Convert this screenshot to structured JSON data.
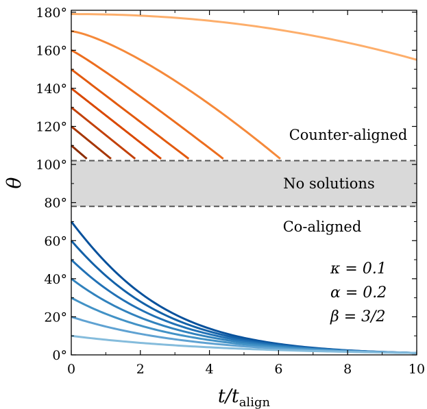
{
  "chart_data": {
    "type": "line",
    "title": "",
    "xlabel": "t/t",
    "xlabel_sub": "align",
    "ylabel": "θ",
    "xlim": [
      0,
      10
    ],
    "ylim": [
      0,
      181
    ],
    "x_ticks": [
      0,
      2,
      4,
      6,
      8,
      10
    ],
    "x_tick_labels": [
      "0",
      "2",
      "4",
      "6",
      "8",
      "10"
    ],
    "y_ticks": [
      0,
      20,
      40,
      60,
      80,
      100,
      120,
      140,
      160,
      180
    ],
    "y_tick_labels": [
      "0°",
      "20°",
      "40°",
      "60°",
      "80°",
      "100°",
      "120°",
      "140°",
      "160°",
      "180°"
    ],
    "grid": false,
    "band": {
      "ymin": 78,
      "ymax": 102,
      "label": "No solutions",
      "color": "#d9d9d9"
    },
    "region_labels": {
      "counter": "Counter-aligned",
      "co": "Co-aligned"
    },
    "params": [
      "κ = 0.1",
      "α = 0.2",
      "β = 3/2"
    ],
    "counter_aligned_series": [
      {
        "theta0": 110,
        "t_end": 0.45,
        "color": "#8c2d04"
      },
      {
        "theta0": 120,
        "t_end": 1.15,
        "color": "#a63603"
      },
      {
        "theta0": 130,
        "t_end": 1.85,
        "color": "#c2410a"
      },
      {
        "theta0": 140,
        "t_end": 2.6,
        "color": "#d94801"
      },
      {
        "theta0": 150,
        "t_end": 3.4,
        "color": "#e25a0f"
      },
      {
        "theta0": 160,
        "t_end": 4.4,
        "color": "#ec6d1e"
      },
      {
        "theta0": 170,
        "t_end": 6.05,
        "color": "#f5893a"
      },
      {
        "theta0": 179,
        "t_end": 10,
        "theta_end": 155,
        "color": "#fdae6b"
      }
    ],
    "co_aligned_series": [
      {
        "theta0": 70,
        "color": "#08519c"
      },
      {
        "theta0": 60,
        "color": "#1361a8"
      },
      {
        "theta0": 50,
        "color": "#2171b5"
      },
      {
        "theta0": 40,
        "color": "#3182bd"
      },
      {
        "theta0": 30,
        "color": "#4292c6"
      },
      {
        "theta0": 20,
        "color": "#5fa2d2"
      },
      {
        "theta0": 10,
        "color": "#85bcdc"
      }
    ],
    "co_aligned_end_value": 1
  }
}
